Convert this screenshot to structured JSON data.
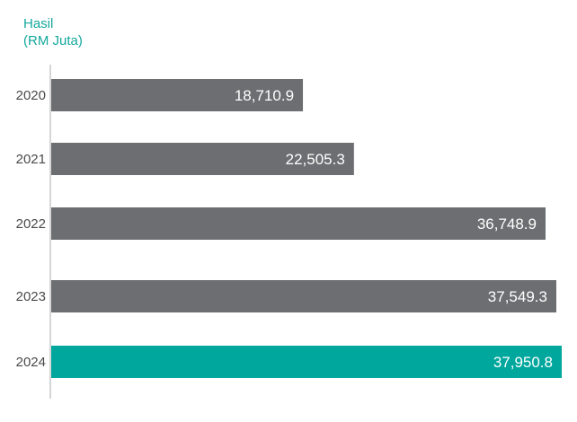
{
  "chart_data": {
    "type": "bar",
    "orientation": "horizontal",
    "title_lines": [
      "Hasil",
      "(RM Juta)"
    ],
    "categories": [
      "2020",
      "2021",
      "2022",
      "2023",
      "2024"
    ],
    "values": [
      18710.9,
      22505.3,
      36748.9,
      37549.3,
      37950.8
    ],
    "value_labels": [
      "18,710.9",
      "22,505.3",
      "36,748.9",
      "37,549.3",
      "37,950.8"
    ],
    "highlight_index": 4,
    "xlim": [
      0,
      37950.8
    ],
    "grid": false,
    "colors": {
      "bar": "#6d6e71",
      "highlight": "#00a79d",
      "axis": "#c8c8c8",
      "title": "#14a89c",
      "category_text": "#4a4a4a",
      "value_text": "#ffffff"
    }
  }
}
